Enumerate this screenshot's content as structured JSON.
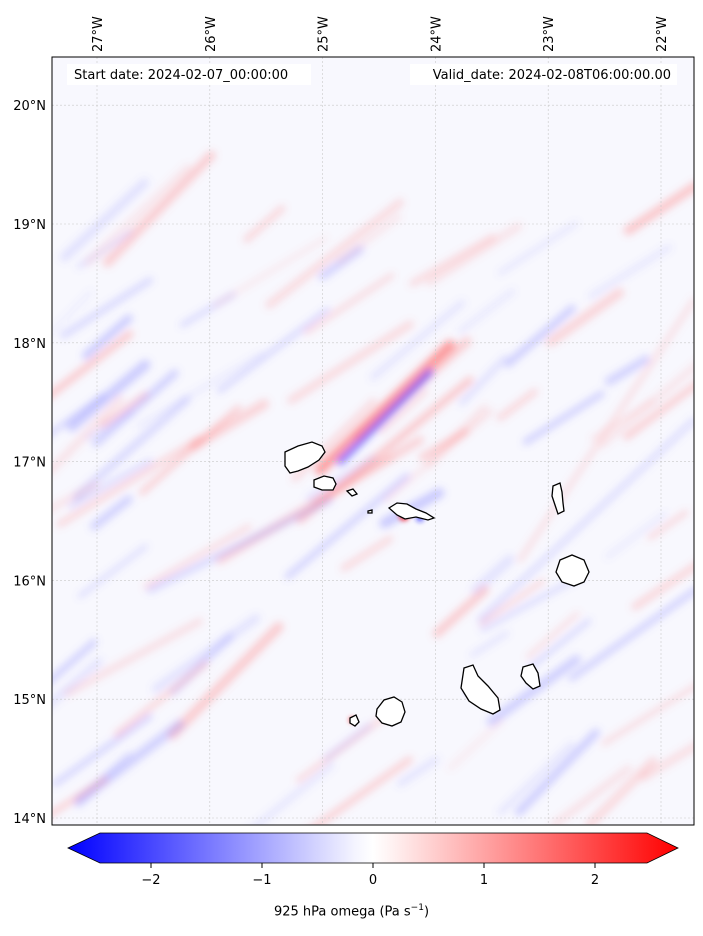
{
  "header": {
    "start_date": "Start date: 2024-02-07_00:00:00",
    "valid_date": "Valid_date: 2024-02-08T06:00:00.00"
  },
  "longitude_ticks": [
    {
      "value": -27,
      "label": "27°W"
    },
    {
      "value": -26,
      "label": "26°W"
    },
    {
      "value": -25,
      "label": "25°W"
    },
    {
      "value": -24,
      "label": "24°W"
    },
    {
      "value": -23,
      "label": "23°W"
    },
    {
      "value": -22,
      "label": "22°W"
    }
  ],
  "latitude_ticks": [
    {
      "value": 20,
      "label": "20°N"
    },
    {
      "value": 19,
      "label": "19°N"
    },
    {
      "value": 18,
      "label": "18°N"
    },
    {
      "value": 17,
      "label": "17°N"
    },
    {
      "value": 16,
      "label": "16°N"
    },
    {
      "value": 15,
      "label": "15°N"
    },
    {
      "value": 14,
      "label": "14°N"
    }
  ],
  "colorbar": {
    "ticks": [
      {
        "value": -2,
        "label": "−2"
      },
      {
        "value": -1,
        "label": "−1"
      },
      {
        "value": 0,
        "label": "0"
      },
      {
        "value": 1,
        "label": "1"
      },
      {
        "value": 2,
        "label": "2"
      }
    ],
    "range": [
      -2.6,
      2.6
    ],
    "label_prefix": "925 hPa omega (Pa s",
    "label_exponent": "−1",
    "label_suffix": ")",
    "negative_color": "#0000ff",
    "neutral_color": "#ffffff",
    "positive_color": "#ff0000"
  },
  "chart_data": {
    "type": "heatmap",
    "variable": "925 hPa omega",
    "units": "Pa s-1",
    "lon_range": [
      -27.1,
      -21.8
    ],
    "lat_range": [
      13.95,
      20.4
    ],
    "color_range": [
      -2.6,
      2.6
    ],
    "gridlines": true,
    "islands": [
      {
        "name": "Santo Antão",
        "lon": -25.15,
        "lat": 17.02
      },
      {
        "name": "São Vicente",
        "lon": -24.95,
        "lat": 16.85
      },
      {
        "name": "Santa Luzia",
        "lon": -24.75,
        "lat": 16.76
      },
      {
        "name": "São Nicolau",
        "lon": -24.25,
        "lat": 16.6
      },
      {
        "name": "Sal",
        "lon": -22.93,
        "lat": 16.72
      },
      {
        "name": "Boa Vista",
        "lon": -22.83,
        "lat": 16.09
      },
      {
        "name": "Maio",
        "lon": -23.17,
        "lat": 15.23
      },
      {
        "name": "Santiago",
        "lon": -23.62,
        "lat": 15.08
      },
      {
        "name": "Fogo",
        "lon": -24.38,
        "lat": 14.92
      },
      {
        "name": "Brava",
        "lon": -24.7,
        "lat": 14.85
      }
    ]
  }
}
